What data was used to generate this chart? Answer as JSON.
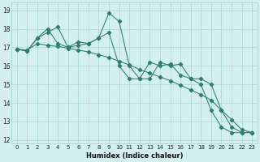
{
  "xlabel": "Humidex (Indice chaleur)",
  "bg_color": "#d4efef",
  "grid_color": "#b0d8d8",
  "line_color": "#2e7d6e",
  "xlim": [
    -0.5,
    23.5
  ],
  "ylim": [
    11.8,
    19.4
  ],
  "yticks": [
    12,
    13,
    14,
    15,
    16,
    17,
    18,
    19
  ],
  "xticks": [
    0,
    1,
    2,
    3,
    4,
    5,
    6,
    7,
    8,
    9,
    10,
    11,
    12,
    13,
    14,
    15,
    16,
    17,
    18,
    19,
    20,
    21,
    22,
    23
  ],
  "series_a": [
    16.9,
    16.8,
    17.5,
    17.8,
    18.1,
    17.0,
    17.1,
    17.2,
    17.5,
    18.85,
    18.4,
    16.0,
    15.3,
    15.3,
    16.2,
    16.0,
    16.1,
    15.3,
    15.3,
    15.0,
    13.6,
    12.7,
    12.4,
    12.4
  ],
  "series_b": [
    16.9,
    16.8,
    17.5,
    18.0,
    17.2,
    17.0,
    17.3,
    17.2,
    17.5,
    17.8,
    16.0,
    15.3,
    15.3,
    16.2,
    16.0,
    16.1,
    15.5,
    15.3,
    15.0,
    13.6,
    12.7,
    12.4,
    12.4,
    12.4
  ],
  "series_c": [
    16.9,
    16.85,
    17.2,
    17.1,
    17.05,
    16.95,
    16.85,
    16.75,
    16.6,
    16.45,
    16.25,
    16.05,
    15.8,
    15.6,
    15.4,
    15.2,
    14.95,
    14.7,
    14.45,
    14.15,
    13.6,
    13.1,
    12.55,
    12.4
  ]
}
